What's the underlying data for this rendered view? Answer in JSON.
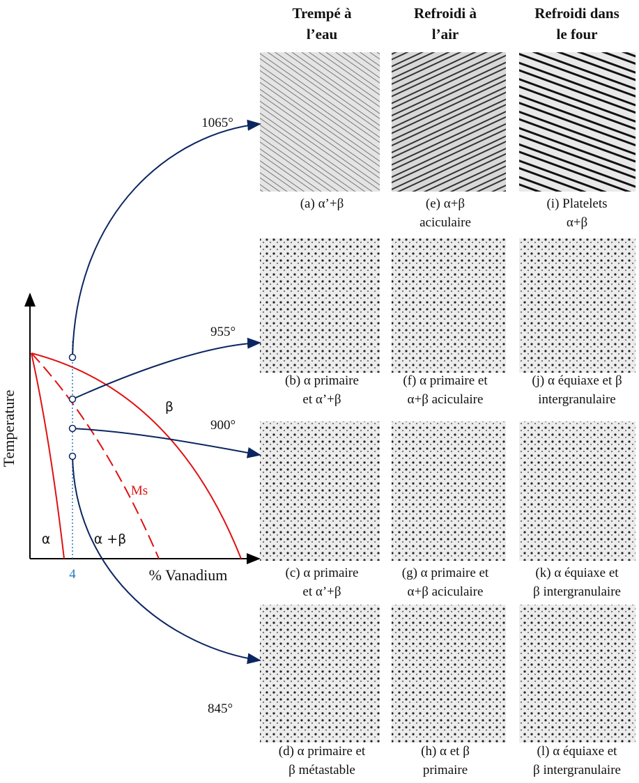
{
  "columns": [
    {
      "title": [
        "Trempé à",
        "l’eau"
      ]
    },
    {
      "title": [
        "Refroidi à",
        "l’air"
      ]
    },
    {
      "title": [
        "Refroidi dans",
        "le four"
      ]
    }
  ],
  "temperatures": [
    "1065°",
    "955°",
    "900°",
    "845°"
  ],
  "captions": [
    [
      [
        "(a) α’+β"
      ],
      [
        "(e) α+β",
        "aciculaire"
      ],
      [
        "(i) Platelets",
        "α+β"
      ]
    ],
    [
      [
        "(b) α primaire",
        "et α’+β"
      ],
      [
        "(f) α primaire et",
        "α+β aciculaire"
      ],
      [
        "(j) α équiaxe et β",
        "intergranulaire"
      ]
    ],
    [
      [
        "(c) α primaire",
        "et α’+β"
      ],
      [
        "(g) α primaire et",
        "α+β aciculaire"
      ],
      [
        "(k) α équiaxe et",
        "β intergranulaire"
      ]
    ],
    [
      [
        "(d) α primaire et",
        "β métastable"
      ],
      [
        "(h) α et β",
        "primaire"
      ],
      [
        "(l) α équiaxe et",
        "β intergranulaire"
      ]
    ]
  ],
  "phase_diagram": {
    "y_axis_label": "Temperature",
    "x_axis_label": "% Vanadium",
    "composition": "4",
    "regions": [
      "α",
      "α +β",
      "β"
    ],
    "ms_label": "Ms"
  }
}
